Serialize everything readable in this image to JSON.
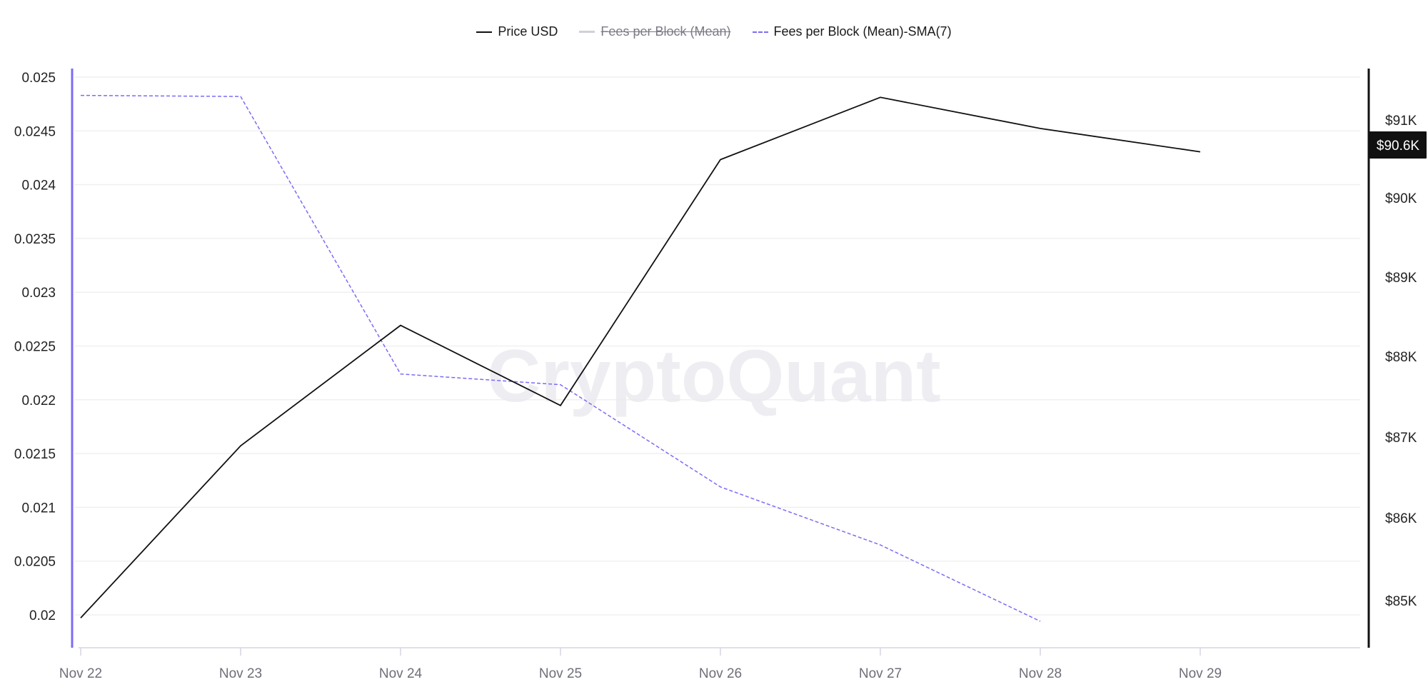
{
  "legend": [
    {
      "label": "Price USD",
      "style": "solid",
      "color": "#111111",
      "enabled": true
    },
    {
      "label": "Fees per Block (Mean)",
      "style": "muted",
      "color": "#d0d0d8",
      "enabled": false
    },
    {
      "label": "Fees per Block (Mean)-SMA(7)",
      "style": "dashed",
      "color": "#7b6cf6",
      "enabled": true
    }
  ],
  "watermark": "CryptoQuant",
  "current_price_tag": "$90.6K",
  "colors": {
    "price_line": "#111111",
    "sma_line": "#7b6cf6",
    "left_axis": "#7b6cf6",
    "right_axis": "#111111",
    "grid": "#f0f0f2",
    "price_tag_bg": "#111111"
  },
  "chart_data": {
    "type": "line",
    "title": "",
    "xlabel": "",
    "ylabel_left": "Fees per Block (Mean)-SMA(7)",
    "ylabel_right": "Price USD",
    "categories": [
      "Nov 22",
      "Nov 23",
      "Nov 24",
      "Nov 25",
      "Nov 26",
      "Nov 27",
      "Nov 28",
      "Nov 29"
    ],
    "y_left_ticks": [
      "0.025",
      "0.0245",
      "0.024",
      "0.0235",
      "0.023",
      "0.0225",
      "0.022",
      "0.0215",
      "0.021",
      "0.0205",
      "0.02"
    ],
    "y_left_range": [
      0.0198,
      0.0251
    ],
    "y_right_ticks": [
      "$91K",
      "$90K",
      "$89K",
      "$88K",
      "$87K",
      "$86K",
      "$85K"
    ],
    "y_right_range": [
      84500,
      91700
    ],
    "grid": true,
    "legend_position": "top-center",
    "series": [
      {
        "name": "Price USD",
        "axis": "right",
        "style": "solid",
        "values": [
          84800,
          86900,
          88400,
          87400,
          90500,
          91300,
          90900,
          90600
        ]
      },
      {
        "name": "Fees per Block (Mean)",
        "axis": "left",
        "style": "hidden",
        "values": []
      },
      {
        "name": "Fees per Block (Mean)-SMA(7)",
        "axis": "left",
        "style": "dashed",
        "values": [
          0.02483,
          0.02482,
          0.02224,
          0.02214,
          0.02119,
          0.02065,
          0.01994,
          null
        ]
      }
    ]
  }
}
